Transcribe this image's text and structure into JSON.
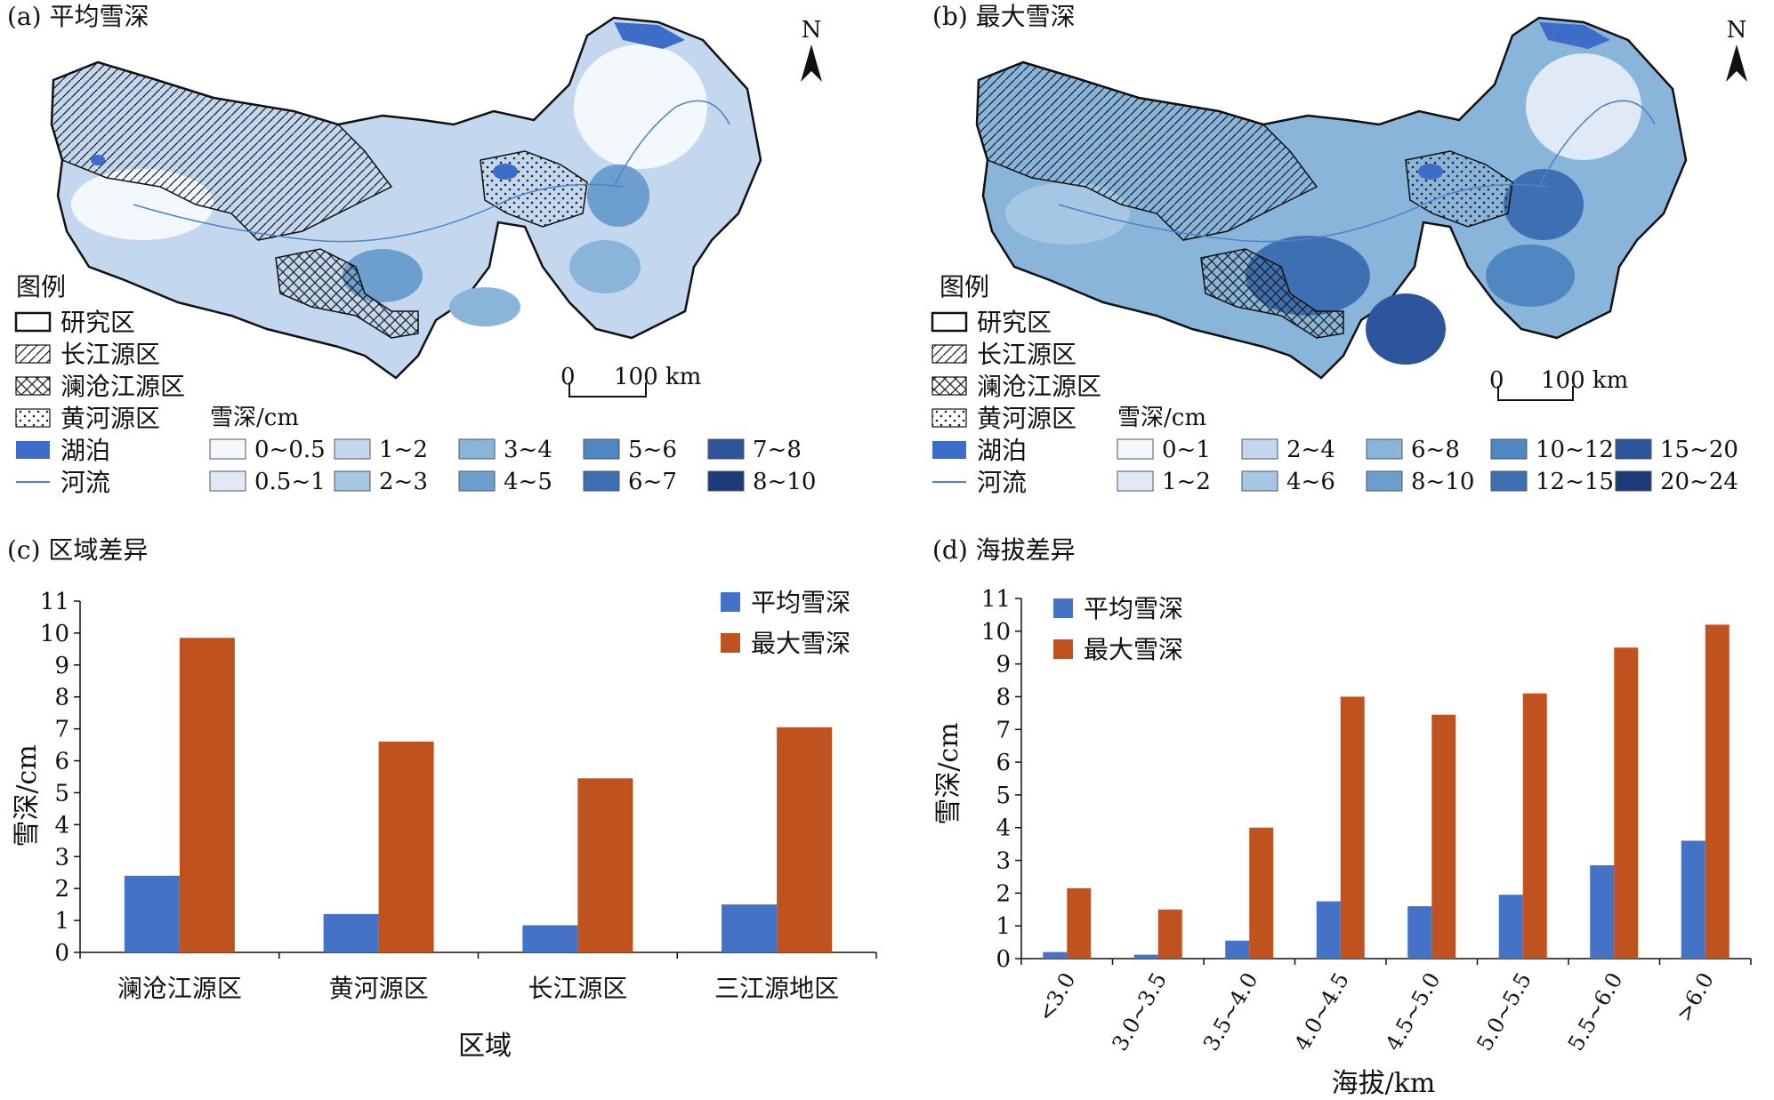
{
  "panel_a": {
    "title": "(a) 平均雪深",
    "north": "N",
    "scale_zero": "0",
    "scale_label": "100 km",
    "legend_title": "图例",
    "legend_items": [
      "研究区",
      "长江源区",
      "澜沧江源区",
      "黄河源区",
      "湖泊",
      "河流"
    ],
    "depth_title": "雪深/cm",
    "depth_classes": [
      "0~0.5",
      "0.5~1",
      "1~2",
      "2~3",
      "3~4",
      "4~5",
      "5~6",
      "6~7",
      "7~8",
      "8~10"
    ]
  },
  "panel_b": {
    "title": "(b) 最大雪深",
    "north": "N",
    "scale_zero": "0",
    "scale_label": "100 km",
    "legend_title": "图例",
    "legend_items": [
      "研究区",
      "长江源区",
      "澜沧江源区",
      "黄河源区",
      "湖泊",
      "河流"
    ],
    "depth_title": "雪深/cm",
    "depth_classes": [
      "0~1",
      "1~2",
      "2~4",
      "4~6",
      "6~8",
      "8~10",
      "10~12",
      "12~15",
      "15~20",
      "20~24"
    ]
  },
  "colors": {
    "depth_ramp": [
      "#f3f8fd",
      "#dfeaf6",
      "#c3d8ee",
      "#a5c7e3",
      "#88b5d9",
      "#6c9fce",
      "#4f87c2",
      "#3d6fb3",
      "#2c559c",
      "#1f3a78"
    ],
    "avg_bar": "#4472c4",
    "max_bar": "#c0521f",
    "lake": "#3e6cc9",
    "river": "#4a83c8"
  },
  "chart_data": [
    {
      "type": "bar",
      "title": "(c) 区域差异",
      "xlabel": "区域",
      "ylabel": "雪深/cm",
      "ylim": [
        0,
        11
      ],
      "yticks": [
        "0",
        "1",
        "2",
        "3",
        "4",
        "5",
        "6",
        "7",
        "8",
        "9",
        "10",
        "11"
      ],
      "categories": [
        "澜沧江源区",
        "黄河源区",
        "长江源区",
        "三江源地区"
      ],
      "legend_position": "top-right",
      "series": [
        {
          "name": "平均雪深",
          "values": [
            2.4,
            1.2,
            0.85,
            1.5
          ]
        },
        {
          "name": "最大雪深",
          "values": [
            9.85,
            6.6,
            5.45,
            7.05
          ]
        }
      ]
    },
    {
      "type": "bar",
      "title": "(d) 海拔差异",
      "xlabel": "海拔/km",
      "ylabel": "雪深/cm",
      "ylim": [
        0,
        11
      ],
      "yticks": [
        "0",
        "1",
        "2",
        "3",
        "4",
        "5",
        "6",
        "7",
        "8",
        "9",
        "10",
        "11"
      ],
      "categories": [
        "<3.0",
        "3.0~3.5",
        "3.5~4.0",
        "4.0~4.5",
        "4.5~5.0",
        "5.0~5.5",
        "5.5~6.0",
        ">6.0"
      ],
      "legend_position": "top-left",
      "series": [
        {
          "name": "平均雪深",
          "values": [
            0.2,
            0.12,
            0.55,
            1.75,
            1.6,
            1.95,
            2.85,
            3.6
          ]
        },
        {
          "name": "最大雪深",
          "values": [
            2.15,
            1.5,
            4.0,
            8.0,
            7.45,
            8.1,
            9.5,
            10.2
          ]
        }
      ]
    }
  ]
}
